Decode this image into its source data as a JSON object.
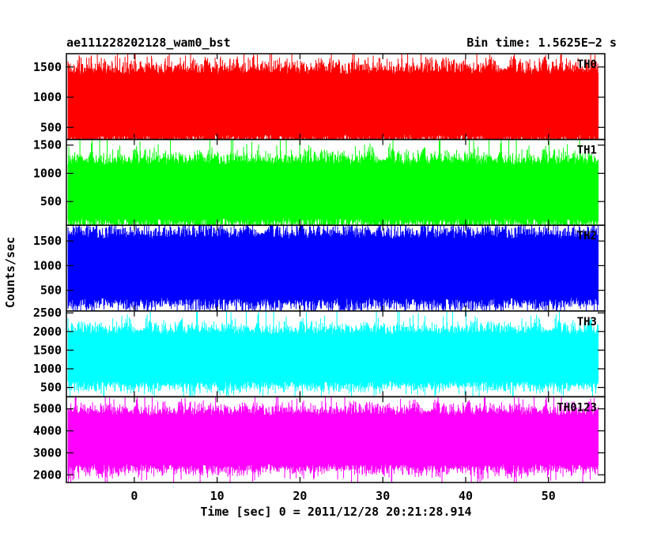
{
  "header": {
    "title": "ae111228202128_wam0_bst",
    "bin_time": "Bin time: 1.5625E−2 s"
  },
  "chart_data": {
    "type": "line",
    "title": "ae111228202128_wam0_bst",
    "subtitle": "Bin time: 1.5625E−2 s",
    "xlabel": "Time [sec] 0 = 2011/12/28 20:21:28.914",
    "ylabel": "Counts/sec",
    "xlim": [
      -8.2,
      56.8
    ],
    "x_data_range": [
      -8,
      56
    ],
    "x_ticks": [
      0,
      10,
      20,
      30,
      40,
      50
    ],
    "grid": false,
    "panels": [
      {
        "label": "TH0",
        "color": "#ff0000",
        "ylim": [
          300,
          1720
        ],
        "y_ticks": [
          500,
          1000,
          1500
        ],
        "typical_range": [
          400,
          1400
        ],
        "mean": 880
      },
      {
        "label": "TH1",
        "color": "#00ff00",
        "ylim": [
          80,
          1600
        ],
        "y_ticks": [
          500,
          1000,
          1500
        ],
        "typical_range": [
          200,
          1150
        ],
        "mean": 680
      },
      {
        "label": "TH2",
        "color": "#0000ff",
        "ylim": [
          80,
          1820
        ],
        "y_ticks": [
          500,
          1000,
          1500
        ],
        "typical_range": [
          350,
          1550
        ],
        "mean": 950
      },
      {
        "label": "TH3",
        "color": "#00ffff",
        "ylim": [
          250,
          2550
        ],
        "y_ticks": [
          500,
          1000,
          1500,
          2000,
          2500
        ],
        "typical_range": [
          700,
          1950
        ],
        "mean": 1300
      },
      {
        "label": "TH0123",
        "color": "#ff00ff",
        "ylim": [
          1650,
          5550
        ],
        "y_ticks": [
          2000,
          3000,
          4000,
          5000
        ],
        "typical_range": [
          2500,
          4700
        ],
        "mean": 3600
      }
    ]
  }
}
